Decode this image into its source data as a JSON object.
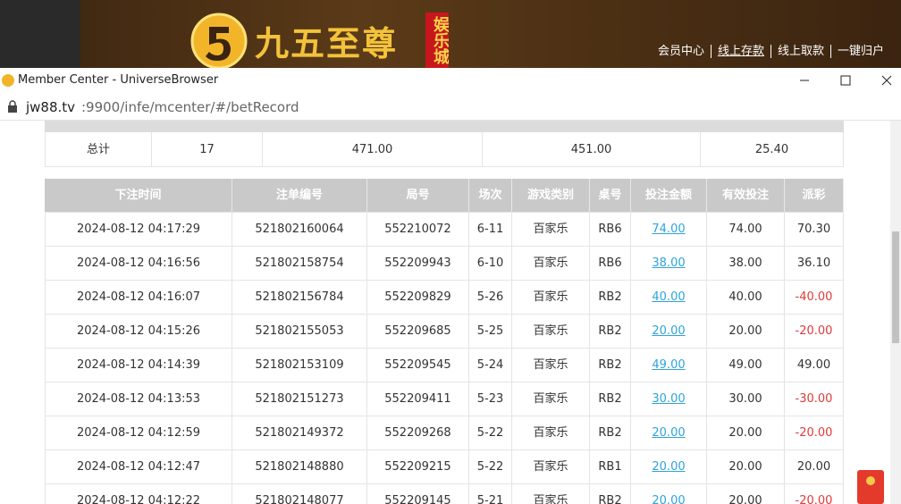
{
  "site_header": {
    "logo": {
      "name": "九五至尊",
      "tag": "娱乐城"
    },
    "nav": [
      "会员中心",
      "线上存款",
      "线上取款",
      "一键归户"
    ]
  },
  "window": {
    "title": "Member Center - UniverseBrowser",
    "address": {
      "host": "jw88.tv",
      "path": ":9900/infe/mcenter/#/betRecord"
    }
  },
  "summary": {
    "cells": [
      "总计",
      "17",
      "471.00",
      "451.00",
      "25.40"
    ]
  },
  "table": {
    "headers": [
      "下注时间",
      "注单编号",
      "局号",
      "场次",
      "游戏类别",
      "桌号",
      "投注金额",
      "有效投注",
      "派彩"
    ],
    "rows": [
      [
        "2024-08-12 04:17:29",
        "521802160064",
        "552210072",
        "6-11",
        "百家乐",
        "RB6",
        "74.00",
        "74.00",
        "70.30"
      ],
      [
        "2024-08-12 04:16:56",
        "521802158754",
        "552209943",
        "6-10",
        "百家乐",
        "RB6",
        "38.00",
        "38.00",
        "36.10"
      ],
      [
        "2024-08-12 04:16:07",
        "521802156784",
        "552209829",
        "5-26",
        "百家乐",
        "RB2",
        "40.00",
        "40.00",
        "-40.00"
      ],
      [
        "2024-08-12 04:15:26",
        "521802155053",
        "552209685",
        "5-25",
        "百家乐",
        "RB2",
        "20.00",
        "20.00",
        "-20.00"
      ],
      [
        "2024-08-12 04:14:39",
        "521802153109",
        "552209545",
        "5-24",
        "百家乐",
        "RB2",
        "49.00",
        "49.00",
        "49.00"
      ],
      [
        "2024-08-12 04:13:53",
        "521802151273",
        "552209411",
        "5-23",
        "百家乐",
        "RB2",
        "30.00",
        "30.00",
        "-30.00"
      ],
      [
        "2024-08-12 04:12:59",
        "521802149372",
        "552209268",
        "5-22",
        "百家乐",
        "RB2",
        "20.00",
        "20.00",
        "-20.00"
      ],
      [
        "2024-08-12 04:12:47",
        "521802148880",
        "552209215",
        "5-22",
        "百家乐",
        "RB1",
        "20.00",
        "20.00",
        "20.00"
      ],
      [
        "2024-08-12 04:12:22",
        "521802148077",
        "552209145",
        "5-21",
        "百家乐",
        "RB2",
        "20.00",
        "20.00",
        "-20.00"
      ]
    ]
  }
}
